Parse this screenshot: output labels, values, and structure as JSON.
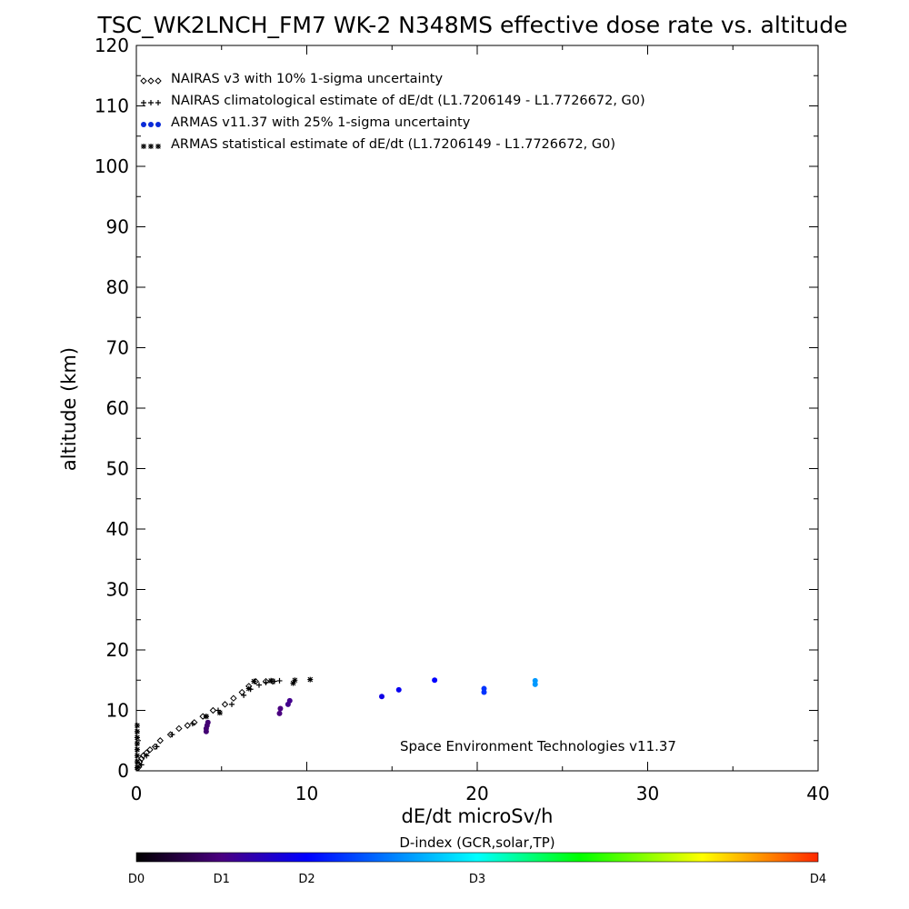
{
  "chart_data": {
    "type": "scatter",
    "title": "TSC_WK2LNCH_FM7 WK-2 N348MS effective dose rate vs. altitude",
    "xlabel": "dE/dt microSv/h",
    "ylabel": "altitude (km)",
    "xlim": [
      0,
      40
    ],
    "ylim": [
      0,
      120
    ],
    "x_ticks": [
      0,
      10,
      20,
      30,
      40
    ],
    "y_ticks": [
      0,
      10,
      20,
      30,
      40,
      50,
      60,
      70,
      80,
      90,
      100,
      110,
      120
    ],
    "grid": false,
    "legend_position": "top-left",
    "legend": [
      {
        "marker": "diamond",
        "label": "NAIRAS v3 with 10% 1-sigma uncertainty"
      },
      {
        "marker": "plus",
        "label": "NAIRAS climatological estimate of dE/dt (L1.7206149 - L1.7726672, G0)"
      },
      {
        "marker": "dot",
        "label": "ARMAS v11.37 with 25% 1-sigma uncertainty"
      },
      {
        "marker": "asterisk",
        "label": "ARMAS statistical estimate of dE/dt (L1.7206149 - L1.7726672, G0)"
      }
    ],
    "annotation": "Space Environment Technologies v11.37",
    "colorbar": {
      "title": "D-index (GCR,solar,TP)",
      "labels": [
        {
          "label": "D0",
          "value": 0
        },
        {
          "label": "D1",
          "value": 1
        },
        {
          "label": "D2",
          "value": 2
        },
        {
          "label": "D3",
          "value": 3
        },
        {
          "label": "D4",
          "value": 4
        }
      ],
      "label_positions": [
        0,
        0.125,
        0.25,
        0.5,
        1.0
      ],
      "colors": [
        "#000000",
        "#4a0080",
        "#0000ff",
        "#00ffff",
        "#00ff00",
        "#ffff00",
        "#ff0000"
      ]
    },
    "series": [
      {
        "marker": "diamond",
        "points": [
          [
            0.1,
            0.5
          ],
          [
            0.15,
            1
          ],
          [
            0.2,
            1.5
          ],
          [
            0.3,
            2
          ],
          [
            0.4,
            2.5
          ],
          [
            0.6,
            3
          ],
          [
            0.8,
            3.5
          ],
          [
            1.1,
            4
          ],
          [
            1.4,
            5
          ],
          [
            2,
            6
          ],
          [
            2.5,
            7
          ],
          [
            3,
            7.5
          ],
          [
            3.4,
            8
          ],
          [
            3.9,
            9
          ],
          [
            4.5,
            10
          ],
          [
            5.2,
            11
          ],
          [
            5.7,
            12
          ],
          [
            6.2,
            13
          ],
          [
            6.6,
            14
          ],
          [
            7,
            14.8
          ],
          [
            7.6,
            14.8
          ],
          [
            8,
            14.8
          ]
        ]
      },
      {
        "marker": "plus",
        "points": [
          [
            0.3,
            1
          ],
          [
            0.6,
            2.5
          ],
          [
            1.2,
            4
          ],
          [
            2.1,
            6
          ],
          [
            3.3,
            7.8
          ],
          [
            4.1,
            9
          ],
          [
            4.8,
            10
          ],
          [
            5.6,
            11
          ],
          [
            6.3,
            12.5
          ],
          [
            6.7,
            13.5
          ],
          [
            7.2,
            14.2
          ],
          [
            7.6,
            14.6
          ],
          [
            8.1,
            14.8
          ],
          [
            7.9,
            14.9
          ],
          [
            8.4,
            14.9
          ]
        ]
      },
      {
        "marker": "asterisk",
        "points": [
          [
            0.05,
            0.5
          ],
          [
            0.05,
            1.5
          ],
          [
            0.05,
            2.5
          ],
          [
            0.05,
            3.5
          ],
          [
            0.05,
            4.5
          ],
          [
            0.05,
            5.5
          ],
          [
            0.05,
            6.5
          ],
          [
            0.05,
            7.5
          ],
          [
            4.1,
            9
          ],
          [
            4.9,
            9.6
          ],
          [
            6.6,
            13.6
          ],
          [
            7.9,
            14.9
          ],
          [
            9.2,
            14.5
          ],
          [
            9.3,
            15
          ],
          [
            10.2,
            15.1
          ],
          [
            6.9,
            14.8
          ]
        ]
      },
      {
        "marker": "dot",
        "points": [
          {
            "x": 4.1,
            "y": 6.5,
            "d": 0.9
          },
          {
            "x": 4.1,
            "y": 7.0,
            "d": 0.9
          },
          {
            "x": 4.15,
            "y": 7.5,
            "d": 0.9
          },
          {
            "x": 4.2,
            "y": 8.0,
            "d": 0.9
          },
          {
            "x": 8.4,
            "y": 9.5,
            "d": 1.0
          },
          {
            "x": 8.45,
            "y": 10.3,
            "d": 1.0
          },
          {
            "x": 8.9,
            "y": 11.0,
            "d": 1.1
          },
          {
            "x": 9.0,
            "y": 11.6,
            "d": 1.1
          },
          {
            "x": 14.4,
            "y": 12.3,
            "d": 1.8
          },
          {
            "x": 15.4,
            "y": 13.4,
            "d": 1.9
          },
          {
            "x": 17.5,
            "y": 15.0,
            "d": 2.0
          },
          {
            "x": 20.4,
            "y": 13.0,
            "d": 2.2
          },
          {
            "x": 20.4,
            "y": 13.6,
            "d": 2.2
          },
          {
            "x": 23.4,
            "y": 14.3,
            "d": 2.6
          },
          {
            "x": 23.4,
            "y": 14.9,
            "d": 2.6
          }
        ]
      }
    ]
  }
}
